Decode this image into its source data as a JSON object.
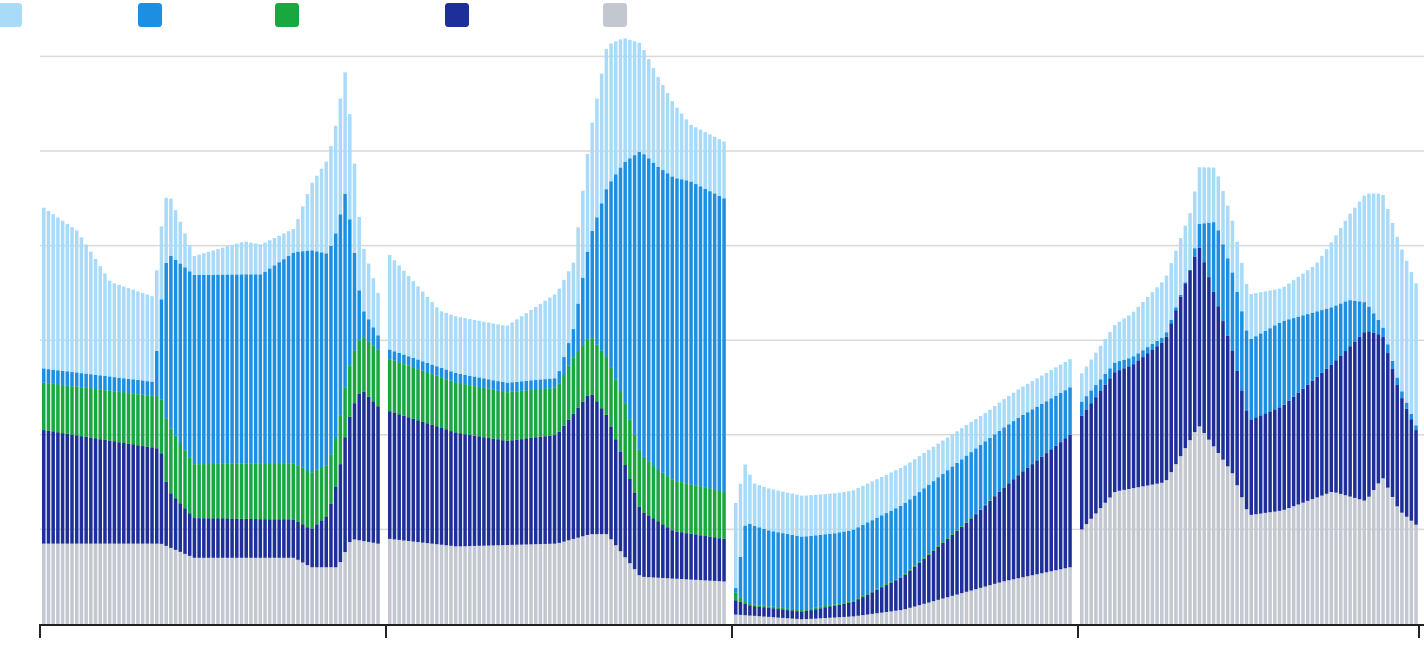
{
  "chart_data": {
    "type": "bar",
    "stacked": true,
    "title": "",
    "xlabel": "",
    "ylabel": "",
    "ylim": [
      0,
      6
    ],
    "grid": true,
    "legend_position": "top-left",
    "segments": [
      {
        "series": [
          {
            "name": "",
            "color": "#a9dbf8",
            "keypoints": [
              [
                0,
                1.7
              ],
              [
                0.1,
                1.5
              ],
              [
                0.2,
                1.0
              ],
              [
                0.33,
                0.9
              ],
              [
                0.45,
                0.2
              ],
              [
                0.6,
                0.35
              ],
              [
                0.75,
                0.25
              ],
              [
                0.8,
                0.7
              ],
              [
                0.9,
                1.3
              ],
              [
                0.95,
                0.7
              ],
              [
                1,
                0.45
              ]
            ]
          },
          {
            "name": "",
            "color": "#1c8fe3",
            "keypoints": [
              [
                0,
                0.15
              ],
              [
                0.33,
                0.15
              ],
              [
                0.37,
                1.8
              ],
              [
                0.45,
                2.0
              ],
              [
                0.65,
                2.0
              ],
              [
                0.8,
                2.35
              ],
              [
                0.9,
                2.1
              ],
              [
                0.95,
                0.3
              ],
              [
                1,
                0.15
              ]
            ]
          },
          {
            "name": "",
            "color": "#19a840",
            "keypoints": [
              [
                0,
                0.5
              ],
              [
                0.35,
                0.55
              ],
              [
                0.37,
                0.7
              ],
              [
                0.45,
                0.57
              ],
              [
                0.8,
                0.6
              ],
              [
                0.88,
                0.5
              ],
              [
                0.92,
                0.55
              ],
              [
                1,
                0.6
              ]
            ]
          },
          {
            "name": "",
            "color": "#1e2f9a",
            "keypoints": [
              [
                0,
                1.2
              ],
              [
                0.35,
                1.0
              ],
              [
                0.37,
                0.6
              ],
              [
                0.45,
                0.42
              ],
              [
                0.8,
                0.4
              ],
              [
                0.85,
                0.55
              ],
              [
                0.9,
                1.2
              ],
              [
                0.95,
                1.6
              ],
              [
                1,
                1.45
              ]
            ]
          },
          {
            "name": "",
            "color": "#c3c7d0",
            "keypoints": [
              [
                0,
                0.85
              ],
              [
                0.35,
                0.85
              ],
              [
                0.45,
                0.7
              ],
              [
                0.75,
                0.7
              ],
              [
                0.8,
                0.6
              ],
              [
                0.88,
                0.6
              ],
              [
                0.92,
                0.9
              ],
              [
                1,
                0.85
              ]
            ]
          }
        ]
      },
      {
        "series": [
          {
            "name": "",
            "color": "#a9dbf8",
            "keypoints": [
              [
                0,
                1.0
              ],
              [
                0.15,
                0.6
              ],
              [
                0.35,
                0.6
              ],
              [
                0.5,
                0.9
              ],
              [
                0.55,
                0.7
              ],
              [
                0.65,
                1.5
              ],
              [
                0.9,
                0.6
              ],
              [
                1,
                0.6
              ]
            ]
          },
          {
            "name": "",
            "color": "#1c8fe3",
            "keypoints": [
              [
                0,
                0.1
              ],
              [
                0.5,
                0.1
              ],
              [
                0.55,
                0.3
              ],
              [
                0.65,
                1.8
              ],
              [
                0.75,
                3.2
              ],
              [
                0.9,
                3.2
              ],
              [
                1,
                3.1
              ]
            ]
          },
          {
            "name": "",
            "color": "#19a840",
            "keypoints": [
              [
                0,
                0.55
              ],
              [
                0.5,
                0.5
              ],
              [
                0.55,
                0.6
              ],
              [
                0.62,
                0.6
              ],
              [
                0.7,
                0.65
              ],
              [
                0.8,
                0.55
              ],
              [
                1,
                0.5
              ]
            ]
          },
          {
            "name": "",
            "color": "#1e2f9a",
            "keypoints": [
              [
                0,
                1.35
              ],
              [
                0.2,
                1.2
              ],
              [
                0.35,
                1.1
              ],
              [
                0.5,
                1.15
              ],
              [
                0.6,
                1.5
              ],
              [
                0.7,
                1.0
              ],
              [
                0.75,
                0.7
              ],
              [
                0.85,
                0.5
              ],
              [
                1,
                0.45
              ]
            ]
          },
          {
            "name": "",
            "color": "#c3c7d0",
            "keypoints": [
              [
                0,
                0.9
              ],
              [
                0.2,
                0.82
              ],
              [
                0.5,
                0.85
              ],
              [
                0.6,
                0.95
              ],
              [
                0.65,
                0.95
              ],
              [
                0.75,
                0.5
              ],
              [
                1,
                0.45
              ]
            ]
          }
        ]
      },
      {
        "series": [
          {
            "name": "",
            "color": "#a9dbf8",
            "keypoints": [
              [
                0,
                0.9
              ],
              [
                0.05,
                0.45
              ],
              [
                0.5,
                0.4
              ],
              [
                0.75,
                0.3
              ],
              [
                1,
                0.3
              ]
            ]
          },
          {
            "name": "",
            "color": "#1c8fe3",
            "keypoints": [
              [
                0,
                0.05
              ],
              [
                0.03,
                0.85
              ],
              [
                0.1,
                0.8
              ],
              [
                0.3,
                0.75
              ],
              [
                0.5,
                0.75
              ],
              [
                0.7,
                0.7
              ],
              [
                1,
                0.5
              ]
            ]
          },
          {
            "name": "",
            "color": "#19a840",
            "keypoints": [
              [
                0,
                0.08
              ],
              [
                0.03,
                0.02
              ],
              [
                1,
                0.0
              ]
            ]
          },
          {
            "name": "",
            "color": "#1e2f9a",
            "keypoints": [
              [
                0,
                0.15
              ],
              [
                0.05,
                0.1
              ],
              [
                0.2,
                0.08
              ],
              [
                0.35,
                0.15
              ],
              [
                0.5,
                0.35
              ],
              [
                0.7,
                0.75
              ],
              [
                0.85,
                1.1
              ],
              [
                1,
                1.4
              ]
            ]
          },
          {
            "name": "",
            "color": "#c3c7d0",
            "keypoints": [
              [
                0,
                0.1
              ],
              [
                0.2,
                0.05
              ],
              [
                0.35,
                0.08
              ],
              [
                0.5,
                0.15
              ],
              [
                0.65,
                0.3
              ],
              [
                0.8,
                0.45
              ],
              [
                1,
                0.6
              ]
            ]
          }
        ]
      },
      {
        "series": [
          {
            "name": "",
            "color": "#a9dbf8",
            "keypoints": [
              [
                0,
                0.3
              ],
              [
                0.1,
                0.4
              ],
              [
                0.25,
                0.6
              ],
              [
                0.35,
                0.6
              ],
              [
                0.45,
                0.55
              ],
              [
                0.6,
                0.35
              ],
              [
                0.7,
                0.5
              ],
              [
                0.8,
                0.9
              ],
              [
                0.9,
                1.4
              ],
              [
                0.95,
                1.5
              ],
              [
                1,
                1.5
              ]
            ]
          },
          {
            "name": "",
            "color": "#1c8fe3",
            "keypoints": [
              [
                0,
                0.15
              ],
              [
                0.1,
                0.1
              ],
              [
                0.25,
                0.05
              ],
              [
                0.33,
                0.0
              ],
              [
                0.4,
                0.8
              ],
              [
                0.6,
                0.9
              ],
              [
                0.8,
                0.5
              ],
              [
                0.85,
                0.3
              ],
              [
                0.9,
                0.1
              ],
              [
                1,
                0.05
              ]
            ]
          },
          {
            "name": "",
            "color": "#19a840",
            "keypoints": [
              [
                0,
                0.0
              ],
              [
                1,
                0.0
              ]
            ]
          },
          {
            "name": "",
            "color": "#1e2f9a",
            "keypoints": [
              [
                0,
                1.2
              ],
              [
                0.15,
                1.3
              ],
              [
                0.25,
                1.5
              ],
              [
                0.35,
                1.9
              ],
              [
                0.5,
                1.0
              ],
              [
                0.6,
                1.1
              ],
              [
                0.75,
                1.35
              ],
              [
                0.85,
                1.8
              ],
              [
                0.9,
                1.5
              ],
              [
                1,
                1.0
              ]
            ]
          },
          {
            "name": "",
            "color": "#c3c7d0",
            "keypoints": [
              [
                0,
                1.0
              ],
              [
                0.1,
                1.4
              ],
              [
                0.25,
                1.5
              ],
              [
                0.35,
                2.1
              ],
              [
                0.45,
                1.6
              ],
              [
                0.5,
                1.15
              ],
              [
                0.6,
                1.2
              ],
              [
                0.75,
                1.4
              ],
              [
                0.85,
                1.3
              ],
              [
                0.9,
                1.55
              ],
              [
                0.95,
                1.2
              ],
              [
                1,
                1.05
              ]
            ]
          }
        ]
      }
    ]
  }
}
